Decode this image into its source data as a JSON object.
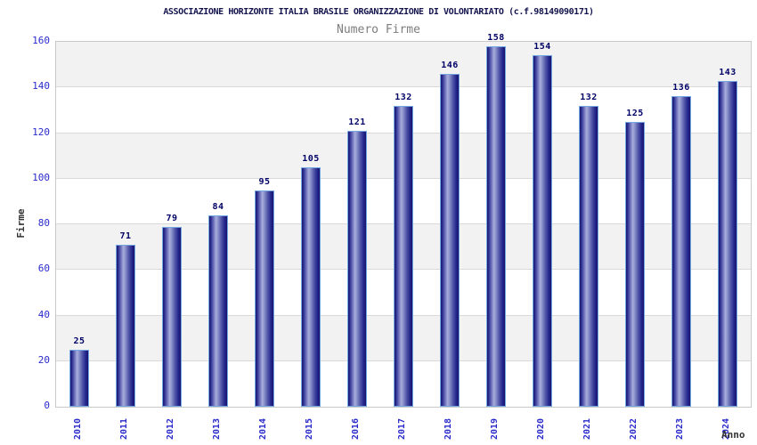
{
  "chart_data": {
    "type": "bar",
    "title": "ASSOCIAZIONE HORIZONTE ITALIA BRASILE ORGANIZZAZIONE DI VOLONTARIATO (c.f.98149090171)",
    "subtitle": "Numero Firme",
    "xlabel": "Anno",
    "ylabel": "Firme",
    "categories": [
      "2010",
      "2011",
      "2012",
      "2013",
      "2014",
      "2015",
      "2016",
      "2017",
      "2018",
      "2019",
      "2020",
      "2021",
      "2022",
      "2023",
      "2024"
    ],
    "values": [
      25,
      71,
      79,
      84,
      95,
      105,
      121,
      132,
      146,
      158,
      154,
      132,
      125,
      136,
      143
    ],
    "ylim": [
      0,
      160
    ],
    "ytick_step": 20,
    "grid": "horizontal",
    "legend": "none",
    "background_bands": "alternating gray/white per 20 units",
    "colors": {
      "title": "#14144e",
      "subtitle": "#7d7d7d",
      "tick_label": "#2a2acc",
      "value_label": "#000066",
      "axis_title": "#333333",
      "bar_dark": "#17176e",
      "bar_highlight": "#a9aedd",
      "bar_border": "#74a7e0",
      "band_gray": "#f2f2f2",
      "grid_line": "#d9d9d9",
      "plot_border": "#c9c9c9"
    }
  }
}
